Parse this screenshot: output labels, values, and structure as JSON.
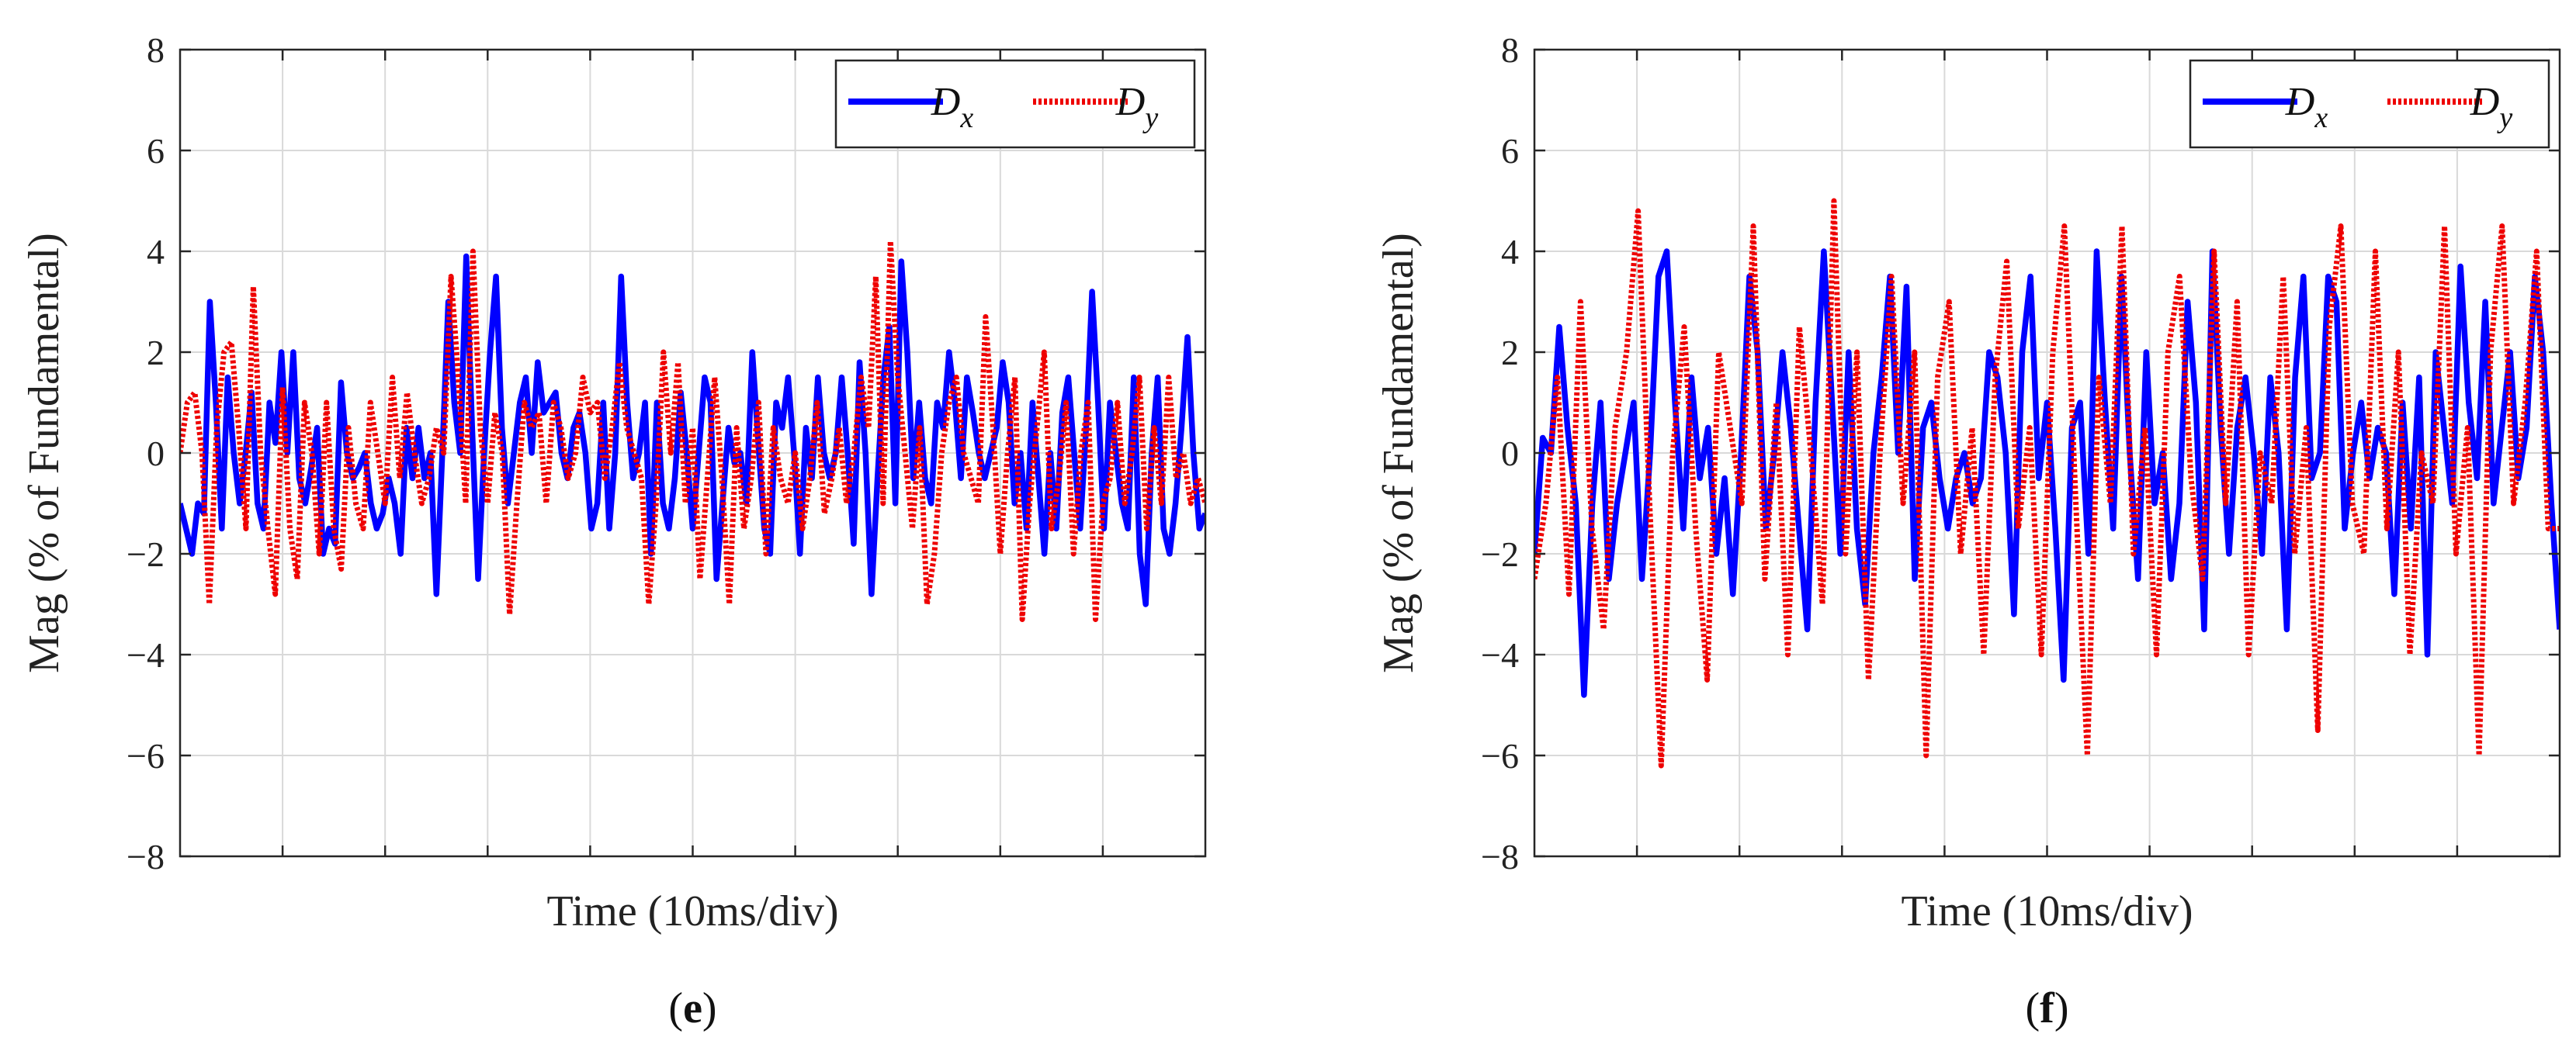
{
  "chart_data": [
    {
      "type": "line",
      "panel_label_open": "(",
      "panel_label_letter": "e",
      "panel_label_close": ")",
      "xlabel": "Time (10ms/div)",
      "ylabel": "Mag (% of Fundamental)",
      "ylim": [
        -8,
        8
      ],
      "yticks": [
        8,
        6,
        4,
        2,
        0,
        -2,
        -4,
        -6,
        -8
      ],
      "ytick_labels": [
        "8",
        "6",
        "4",
        "2",
        "0",
        "−2",
        "−4",
        "−6",
        "−8"
      ],
      "xlim": [
        0,
        100
      ],
      "x_divisions": 10,
      "grid": true,
      "legend_position": "top-right",
      "series": [
        {
          "name": "D",
          "subscript": "x",
          "color": "#0000ff",
          "style": "solid",
          "values": [
            -1.0,
            -1.5,
            -2.0,
            -1.0,
            -1.2,
            3.0,
            1.0,
            -1.5,
            1.5,
            0.0,
            -1.0,
            0.0,
            1.2,
            -1.0,
            -1.5,
            1.0,
            0.2,
            2.0,
            0.0,
            2.0,
            -0.5,
            -1.0,
            -0.3,
            0.5,
            -2.0,
            -1.5,
            -1.8,
            1.4,
            0.0,
            -0.5,
            -0.3,
            0.0,
            -1.0,
            -1.5,
            -1.2,
            -0.5,
            -1.0,
            -2.0,
            0.5,
            -0.5,
            0.5,
            -0.5,
            0.0,
            -2.8,
            0.0,
            3.0,
            1.0,
            0.0,
            3.9,
            0.5,
            -2.5,
            0.0,
            2.0,
            3.5,
            0.5,
            -1.0,
            0.0,
            1.0,
            1.5,
            0.0,
            1.8,
            0.8,
            1.0,
            1.2,
            0.0,
            -0.5,
            0.5,
            0.8,
            0.0,
            -1.5,
            -1.0,
            1.0,
            -1.5,
            0.0,
            3.5,
            1.0,
            -0.5,
            0.0,
            1.0,
            -2.0,
            1.0,
            -1.0,
            -1.5,
            -0.5,
            1.2,
            0.0,
            -1.5,
            0.0,
            1.5,
            1.0,
            -2.5,
            -1.0,
            0.5,
            -0.2,
            0.0,
            -1.0,
            2.0,
            0.2,
            -1.5,
            -2.0,
            1.0,
            0.5,
            1.5,
            0.0,
            -2.0,
            0.5,
            -0.5,
            1.5,
            0.0,
            -0.5,
            0.0,
            1.5,
            0.0,
            -1.8,
            1.8,
            0.0,
            -2.8,
            -0.5,
            1.5,
            2.5,
            -1.0,
            3.8,
            2.0,
            -0.5,
            1.0,
            -0.5,
            -1.0,
            1.0,
            0.5,
            2.0,
            1.0,
            -0.5,
            1.5,
            0.8,
            0.0,
            -0.5,
            0.0,
            0.5,
            1.8,
            1.0,
            -1.0,
            0.0,
            -1.5,
            1.0,
            -0.5,
            -2.0,
            0.0,
            -1.5,
            0.8,
            1.5,
            0.0,
            -1.5,
            0.5,
            3.2,
            1.0,
            -1.5,
            1.0,
            0.0,
            -1.0,
            -1.5,
            1.5,
            -2.0,
            -3.0,
            0.0,
            1.5,
            -1.5,
            -2.0,
            -1.0,
            0.5,
            2.3,
            0.0,
            -1.5,
            -1.2
          ]
        },
        {
          "name": "D",
          "subscript": "y",
          "color": "#ee0000",
          "style": "dotted",
          "values": [
            0.0,
            1.0,
            1.2,
            0.0,
            -3.0,
            0.5,
            2.0,
            2.2,
            0.5,
            -1.5,
            3.3,
            0.0,
            -1.5,
            -2.8,
            1.3,
            -1.5,
            -2.5,
            1.0,
            0.0,
            -2.0,
            1.0,
            -1.5,
            -2.3,
            0.5,
            -1.0,
            -1.5,
            1.0,
            0.0,
            -1.0,
            1.5,
            -0.5,
            1.2,
            0.0,
            -1.0,
            -0.5,
            0.5,
            0.0,
            3.5,
            1.5,
            -1.0,
            4.0,
            0.5,
            -1.0,
            0.8,
            0.0,
            -3.2,
            -1.0,
            1.0,
            0.5,
            0.8,
            -1.0,
            1.0,
            0.5,
            -0.5,
            0.0,
            1.5,
            0.8,
            1.0,
            -0.5,
            0.5,
            1.8,
            0.5,
            0.0,
            -0.5,
            -3.0,
            -1.0,
            2.0,
            0.0,
            1.8,
            -1.0,
            0.5,
            -2.5,
            -0.5,
            1.5,
            -0.5,
            -3.0,
            0.5,
            -1.5,
            -0.5,
            1.0,
            -2.0,
            0.5,
            -0.5,
            -1.0,
            0.0,
            -1.5,
            -0.5,
            1.0,
            -1.2,
            -0.5,
            0.5,
            -1.0,
            0.0,
            1.5,
            0.5,
            3.5,
            -1.0,
            4.2,
            1.5,
            0.0,
            -1.5,
            0.5,
            -3.0,
            -2.0,
            0.0,
            1.0,
            1.5,
            0.0,
            -0.5,
            -1.0,
            2.7,
            0.5,
            -2.0,
            0.0,
            1.5,
            -3.3,
            -1.0,
            0.5,
            2.0,
            -1.5,
            -0.5,
            1.0,
            -2.0,
            0.0,
            1.0,
            -3.3,
            -1.0,
            -0.5,
            1.0,
            -1.0,
            0.0,
            1.5,
            -1.5,
            0.5,
            -1.0,
            1.5,
            -0.5,
            0.0,
            -1.0,
            -0.5,
            -1.0
          ]
        }
      ]
    },
    {
      "type": "line",
      "panel_label_open": "(",
      "panel_label_letter": "f",
      "panel_label_close": ")",
      "xlabel": "Time (10ms/div)",
      "ylabel": "Mag (% of Fundamental)",
      "ylim": [
        -8,
        8
      ],
      "yticks": [
        8,
        6,
        4,
        2,
        0,
        -2,
        -4,
        -6,
        -8
      ],
      "ytick_labels": [
        "8",
        "6",
        "4",
        "2",
        "0",
        "−2",
        "−4",
        "−6",
        "−8"
      ],
      "xlim": [
        0,
        100
      ],
      "x_divisions": 10,
      "grid": true,
      "legend_position": "top-right",
      "series": [
        {
          "name": "D",
          "subscript": "x",
          "color": "#0000ff",
          "style": "solid",
          "values": [
            -2.0,
            0.3,
            0.0,
            2.5,
            0.5,
            -1.0,
            -4.8,
            -1.0,
            1.0,
            -2.5,
            -1.0,
            0.0,
            1.0,
            -2.5,
            0.0,
            3.5,
            4.0,
            1.0,
            -1.5,
            1.5,
            -0.5,
            0.5,
            -2.0,
            -0.5,
            -2.8,
            0.0,
            3.5,
            2.0,
            -1.5,
            0.0,
            2.0,
            0.5,
            -1.5,
            -3.5,
            1.0,
            4.0,
            1.0,
            -2.0,
            2.0,
            -1.5,
            -3.0,
            0.0,
            1.5,
            3.5,
            0.0,
            3.3,
            -2.5,
            0.5,
            1.0,
            -0.5,
            -1.5,
            -0.5,
            0.0,
            -1.0,
            -0.5,
            2.0,
            1.5,
            0.0,
            -3.2,
            2.0,
            3.5,
            -0.5,
            1.0,
            -1.5,
            -4.5,
            0.5,
            1.0,
            -2.0,
            4.0,
            1.0,
            -1.5,
            3.5,
            0.0,
            -2.5,
            2.0,
            -1.0,
            0.0,
            -2.5,
            -1.0,
            3.0,
            1.0,
            -3.5,
            4.0,
            0.5,
            -2.0,
            0.5,
            1.5,
            0.0,
            -2.0,
            1.5,
            0.0,
            -3.5,
            1.5,
            3.5,
            -0.5,
            0.0,
            3.5,
            3.0,
            -1.5,
            0.0,
            1.0,
            -0.5,
            0.5,
            0.0,
            -2.8,
            1.0,
            -1.5,
            1.5,
            -4.0,
            2.0,
            0.5,
            -1.0,
            3.7,
            1.0,
            -0.5,
            3.0,
            -1.0,
            0.5,
            2.0,
            -0.5,
            0.5,
            3.5,
            2.0,
            -1.0,
            -3.5
          ]
        },
        {
          "name": "D",
          "subscript": "y",
          "color": "#ee0000",
          "style": "dotted",
          "values": [
            -2.5,
            -1.0,
            1.5,
            -2.8,
            3.0,
            -1.5,
            -3.5,
            0.5,
            2.0,
            4.8,
            -1.0,
            -6.2,
            0.0,
            2.5,
            -1.5,
            -4.5,
            2.0,
            0.5,
            -1.0,
            4.5,
            -2.5,
            1.0,
            -4.0,
            2.5,
            0.0,
            -3.0,
            5.0,
            -2.0,
            2.0,
            -4.5,
            0.0,
            3.5,
            -1.0,
            2.0,
            -6.0,
            1.5,
            3.0,
            -2.0,
            0.5,
            -4.0,
            1.5,
            3.8,
            -1.5,
            0.5,
            -4.0,
            2.0,
            4.5,
            -1.0,
            -6.0,
            1.5,
            -1.0,
            4.5,
            -2.0,
            0.5,
            -4.0,
            2.0,
            3.5,
            -0.5,
            -2.5,
            4.0,
            -1.0,
            3.0,
            -4.0,
            0.0,
            -1.0,
            3.5,
            -2.0,
            0.5,
            -5.5,
            2.5,
            4.5,
            -1.0,
            -2.0,
            4.0,
            -1.5,
            2.0,
            -4.0,
            0.0,
            -1.0,
            4.5,
            -2.0,
            0.5,
            -6.0,
            2.0,
            4.5,
            -1.0,
            1.0,
            4.0,
            -1.5,
            -1.5
          ]
        }
      ]
    }
  ]
}
